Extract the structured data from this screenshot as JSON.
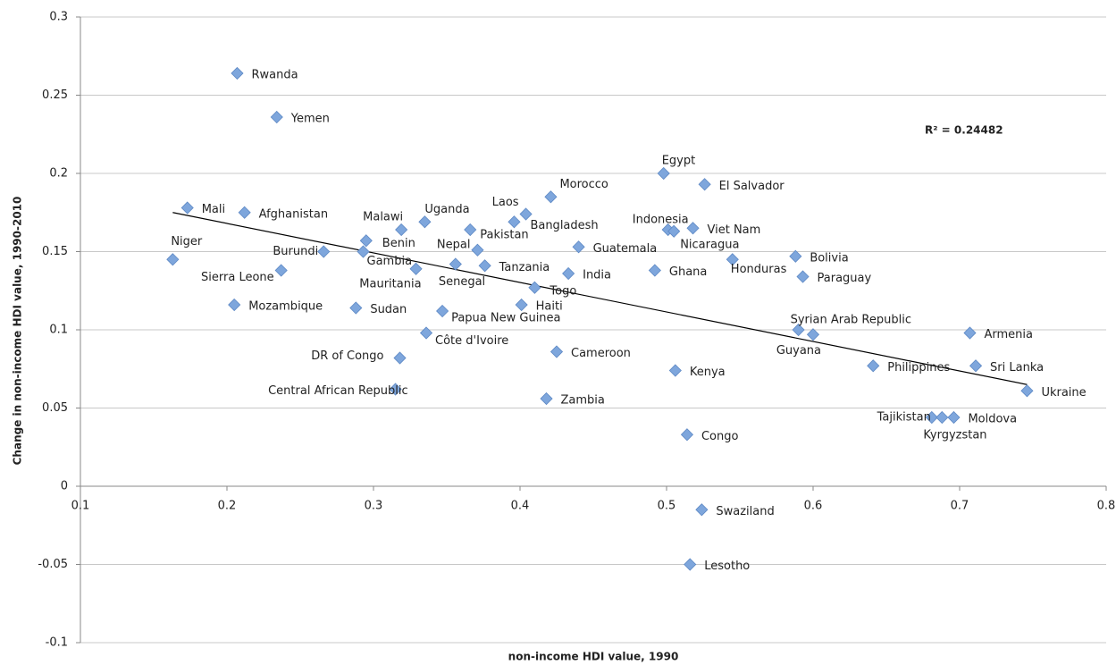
{
  "chart_data": {
    "type": "scatter",
    "x_label": "non-income HDI value, 1990",
    "y_label": "Change in non-income HDI value, 1990-2010",
    "annotation": "R² = 0.24482",
    "color": "#7ea6dc",
    "grid": true,
    "xlim": [
      0.1,
      0.8
    ],
    "xticks": [
      0.1,
      0.2,
      0.3,
      0.4,
      0.5,
      0.6,
      0.7,
      0.8
    ],
    "ylim": [
      -0.1,
      0.3
    ],
    "yticks": [
      -0.1,
      -0.05,
      0,
      0.05,
      0.1,
      0.15,
      0.2,
      0.25,
      0.3
    ],
    "point_labels": [
      "Rwanda",
      "Yemen",
      "Mali",
      "Afghanistan",
      "Niger",
      "Sierra Leone",
      "Burundi",
      "Mozambique",
      "Malawi",
      "Benin",
      "Gambia",
      "Mauritania",
      "Sudan",
      "Uganda",
      "Pakistan",
      "Nepal",
      "Senegal",
      "Tanzania",
      "Laos",
      "Bangladesh",
      "Morocco",
      "Togo",
      "Haiti",
      "Papua New Guinea",
      "Côte d'Ivoire",
      "DR of Congo",
      "Central African Republic",
      "Cameroon",
      "Zambia",
      "India",
      "Guatemala",
      "Egypt",
      "El Salvador",
      "Indonesia",
      "Nicaragua",
      "Viet Nam",
      "Ghana",
      "Kenya",
      "Congo",
      "Swaziland",
      "Lesotho",
      "Honduras",
      "Bolivia",
      "Paraguay",
      "Syrian Arab Republic",
      "Guyana",
      "Philippines",
      "Armenia",
      "Sri Lanka",
      "Ukraine",
      "Tajikistan",
      "Kyrgyzstan",
      "Moldova"
    ],
    "x": [
      0.207,
      0.234,
      0.173,
      0.212,
      0.163,
      0.237,
      0.266,
      0.205,
      0.319,
      0.295,
      0.293,
      0.329,
      0.288,
      0.335,
      0.366,
      0.371,
      0.356,
      0.376,
      0.404,
      0.396,
      0.421,
      0.41,
      0.401,
      0.347,
      0.336,
      0.318,
      0.315,
      0.425,
      0.418,
      0.433,
      0.44,
      0.498,
      0.526,
      0.501,
      0.505,
      0.518,
      0.492,
      0.506,
      0.514,
      0.524,
      0.516,
      0.545,
      0.588,
      0.593,
      0.59,
      0.6,
      0.641,
      0.707,
      0.711,
      0.746,
      0.681,
      0.688,
      0.696
    ],
    "values": [
      0.264,
      0.236,
      0.178,
      0.175,
      0.145,
      0.138,
      0.15,
      0.116,
      0.164,
      0.157,
      0.15,
      0.139,
      0.114,
      0.169,
      0.164,
      0.151,
      0.142,
      0.141,
      0.174,
      0.169,
      0.185,
      0.127,
      0.116,
      0.112,
      0.098,
      0.082,
      0.062,
      0.086,
      0.056,
      0.136,
      0.153,
      0.2,
      0.193,
      0.164,
      0.163,
      0.165,
      0.138,
      0.074,
      0.033,
      -0.015,
      -0.05,
      0.145,
      0.147,
      0.134,
      0.1,
      0.097,
      0.077,
      0.098,
      0.077,
      0.061,
      0.044,
      0.044,
      0.044
    ],
    "trendline": {
      "x": [
        0.163,
        0.746
      ],
      "values": [
        0.175,
        0.065
      ]
    }
  }
}
